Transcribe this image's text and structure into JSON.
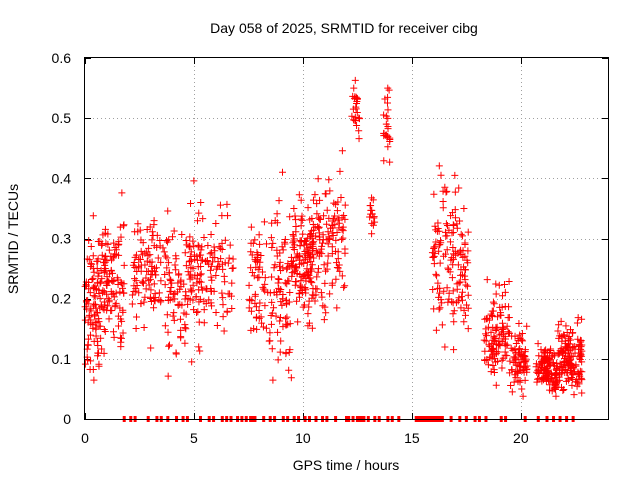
{
  "chart_data": {
    "type": "scatter",
    "title": "Day 058 of 2025, SRMTID for receiver cibg",
    "xlabel": "GPS time / hours",
    "ylabel": "SRMTID / TECUs",
    "xlim": [
      0,
      24
    ],
    "ylim": [
      0,
      0.6
    ],
    "x_ticks": [
      0,
      5,
      10,
      15,
      20
    ],
    "y_ticks": [
      0,
      0.1,
      0.2,
      0.3,
      0.4,
      0.5,
      0.6
    ],
    "x_tick_labels": [
      "0",
      "5",
      "10",
      "15",
      "20"
    ],
    "y_tick_labels": [
      "0",
      "0.1",
      "0.2",
      "0.3",
      "0.4",
      "0.5",
      "0.6"
    ],
    "grid": true,
    "marker": "+",
    "series_color": "#ff0000",
    "clusters": [
      {
        "x_start": 0.0,
        "x_end": 0.9,
        "mean": 0.19,
        "spread": 0.06,
        "count": 120
      },
      {
        "x_start": 0.9,
        "x_end": 1.8,
        "mean": 0.22,
        "spread": 0.06,
        "count": 90
      },
      {
        "x_start": 2.1,
        "x_end": 3.2,
        "mean": 0.24,
        "spread": 0.06,
        "count": 80
      },
      {
        "x_start": 3.2,
        "x_end": 4.2,
        "mean": 0.25,
        "spread": 0.05,
        "count": 40
      },
      {
        "x_start": 3.8,
        "x_end": 4.6,
        "mean": 0.19,
        "spread": 0.06,
        "count": 45
      },
      {
        "x_start": 4.6,
        "x_end": 5.5,
        "mean": 0.24,
        "spread": 0.07,
        "count": 80
      },
      {
        "x_start": 5.5,
        "x_end": 6.8,
        "mean": 0.24,
        "spread": 0.05,
        "count": 70
      },
      {
        "x_start": 7.5,
        "x_end": 8.3,
        "mean": 0.23,
        "spread": 0.05,
        "count": 55
      },
      {
        "x_start": 8.3,
        "x_end": 9.5,
        "mean": 0.21,
        "spread": 0.08,
        "count": 90
      },
      {
        "x_start": 9.5,
        "x_end": 10.5,
        "mean": 0.26,
        "spread": 0.05,
        "count": 140
      },
      {
        "x_start": 10.5,
        "x_end": 12.0,
        "mean": 0.3,
        "spread": 0.06,
        "count": 110
      },
      {
        "x_start": 12.2,
        "x_end": 12.6,
        "mean": 0.52,
        "spread": 0.03,
        "count": 25
      },
      {
        "x_start": 13.0,
        "x_end": 13.3,
        "mean": 0.33,
        "spread": 0.02,
        "count": 15
      },
      {
        "x_start": 13.7,
        "x_end": 14.0,
        "mean": 0.48,
        "spread": 0.03,
        "count": 25
      },
      {
        "x_start": 15.9,
        "x_end": 17.6,
        "mean": 0.27,
        "spread": 0.07,
        "count": 140
      },
      {
        "x_start": 18.3,
        "x_end": 19.5,
        "mean": 0.14,
        "spread": 0.04,
        "count": 110
      },
      {
        "x_start": 19.5,
        "x_end": 20.3,
        "mean": 0.1,
        "spread": 0.03,
        "count": 80
      },
      {
        "x_start": 20.7,
        "x_end": 21.7,
        "mean": 0.08,
        "spread": 0.02,
        "count": 120
      },
      {
        "x_start": 21.7,
        "x_end": 22.8,
        "mean": 0.1,
        "spread": 0.03,
        "count": 150
      }
    ],
    "zero_markers_x": [
      1.8,
      2.1,
      2.3,
      2.9,
      3.3,
      3.5,
      3.8,
      4.2,
      4.5,
      4.7,
      5.3,
      5.7,
      5.9,
      6.3,
      6.5,
      6.7,
      7.0,
      7.2,
      7.4,
      7.6,
      7.7,
      7.8,
      8.2,
      8.5,
      8.7,
      9.1,
      9.3,
      9.6,
      9.8,
      10.1,
      10.3,
      10.6,
      10.9,
      11.1,
      11.5,
      12.0,
      12.1,
      12.3,
      12.5,
      12.6,
      12.7,
      12.8,
      13.0,
      13.3,
      13.5,
      13.9,
      14.1,
      14.4,
      15.2,
      15.3,
      15.4,
      15.5,
      15.6,
      15.7,
      15.8,
      15.9,
      16.0,
      16.1,
      16.2,
      16.3,
      16.4,
      16.8,
      17.2,
      17.5,
      17.9,
      18.1,
      18.4,
      19.1,
      19.3,
      20.2,
      20.8,
      21.2,
      21.5,
      21.8,
      22.1,
      22.4
    ]
  }
}
